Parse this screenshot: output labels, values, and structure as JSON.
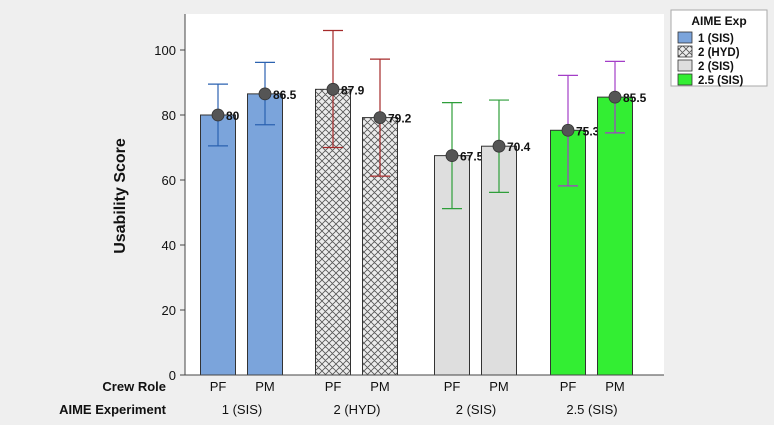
{
  "chart_data": {
    "type": "bar",
    "ylabel": "Usability Score",
    "ylim": [
      0,
      110
    ],
    "yticks": [
      0,
      20,
      40,
      60,
      80,
      100
    ],
    "grid": false,
    "row_headers": [
      "Crew Role",
      "AIME Experiment"
    ],
    "legend": {
      "title": "AIME Exp",
      "placement": "right",
      "entries": [
        {
          "label": "1 (SIS)",
          "color": "#7BA4DB",
          "pattern": "solid"
        },
        {
          "label": "2 (HYD)",
          "color": "#E8E8E8",
          "pattern": "crosshatch"
        },
        {
          "label": "2 (SIS)",
          "color": "#DEDEDE",
          "pattern": "solid"
        },
        {
          "label": "2.5 (SIS)",
          "color": "#33EE33",
          "pattern": "solid"
        }
      ]
    },
    "groups": [
      {
        "label": "1 (SIS)",
        "color": "#7BA4DB",
        "errcolor": "#2B62B0",
        "pattern": "solid",
        "bars": [
          {
            "role": "PF",
            "value": 80,
            "label": "80",
            "err_low": 70.5,
            "err_high": 89.5
          },
          {
            "role": "PM",
            "value": 86.5,
            "label": "86.5",
            "err_low": 77,
            "err_high": 96.2
          }
        ]
      },
      {
        "label": "2 (HYD)",
        "color": "#E8E8E8",
        "errcolor": "#A52A2A",
        "pattern": "crosshatch",
        "bars": [
          {
            "role": "PF",
            "value": 87.9,
            "label": "87.9",
            "err_low": 70,
            "err_high": 106
          },
          {
            "role": "PM",
            "value": 79.2,
            "label": "79.2",
            "err_low": 61.2,
            "err_high": 97.2
          }
        ]
      },
      {
        "label": "2 (SIS)",
        "color": "#DEDEDE",
        "errcolor": "#2E9E3A",
        "pattern": "solid",
        "bars": [
          {
            "role": "PF",
            "value": 67.5,
            "label": "67.5",
            "err_low": 51.2,
            "err_high": 83.8
          },
          {
            "role": "PM",
            "value": 70.4,
            "label": "70.4",
            "err_low": 56.2,
            "err_high": 84.6
          }
        ]
      },
      {
        "label": "2.5 (SIS)",
        "color": "#33EE33",
        "errcolor": "#A33DC7",
        "pattern": "solid",
        "bars": [
          {
            "role": "PF",
            "value": 75.3,
            "label": "75.3",
            "err_low": 58.2,
            "err_high": 92.2
          },
          {
            "role": "PM",
            "value": 85.5,
            "label": "85.5",
            "err_low": 74.5,
            "err_high": 96.5
          }
        ]
      }
    ]
  }
}
